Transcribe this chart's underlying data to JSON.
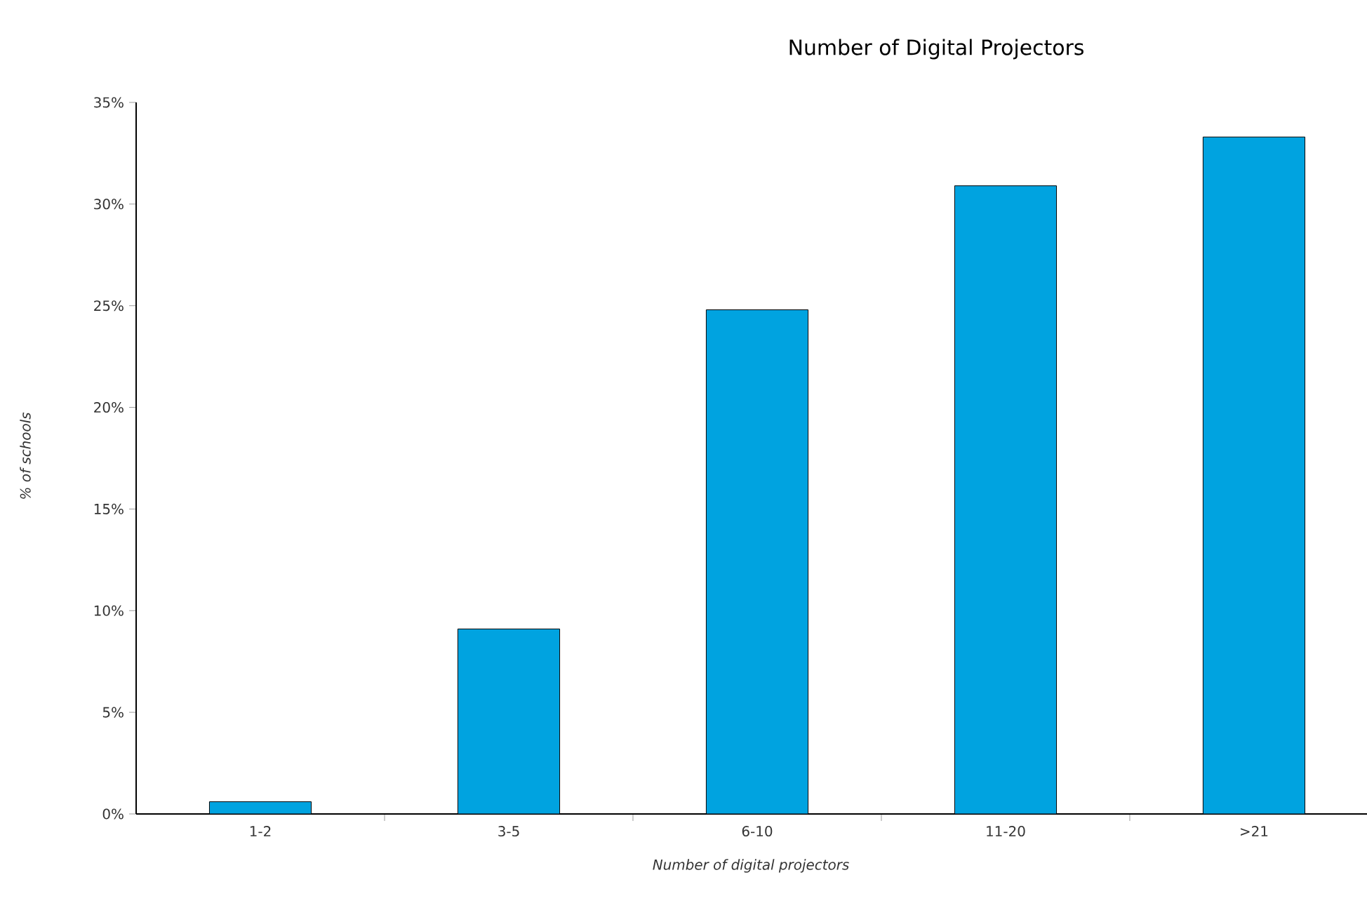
{
  "chart_data": {
    "type": "bar",
    "title": "Number of Digital Projectors",
    "xlabel": "Number of digital projectors",
    "ylabel": "% of schools",
    "categories": [
      "1-2",
      "3-5",
      "6-10",
      "11-20",
      ">21"
    ],
    "values": [
      0.6,
      9.1,
      24.8,
      30.9,
      33.3
    ],
    "color": "#00a3e0",
    "ylim": [
      0,
      35
    ],
    "yticks": [
      {
        "value": 0,
        "label": "0%"
      },
      {
        "value": 5,
        "label": "5%"
      },
      {
        "value": 10,
        "label": "10%"
      },
      {
        "value": 15,
        "label": "15%"
      },
      {
        "value": 20,
        "label": "20%"
      },
      {
        "value": 25,
        "label": "25%"
      },
      {
        "value": 30,
        "label": "30%"
      },
      {
        "value": 35,
        "label": "35%"
      }
    ],
    "grid": false
  }
}
